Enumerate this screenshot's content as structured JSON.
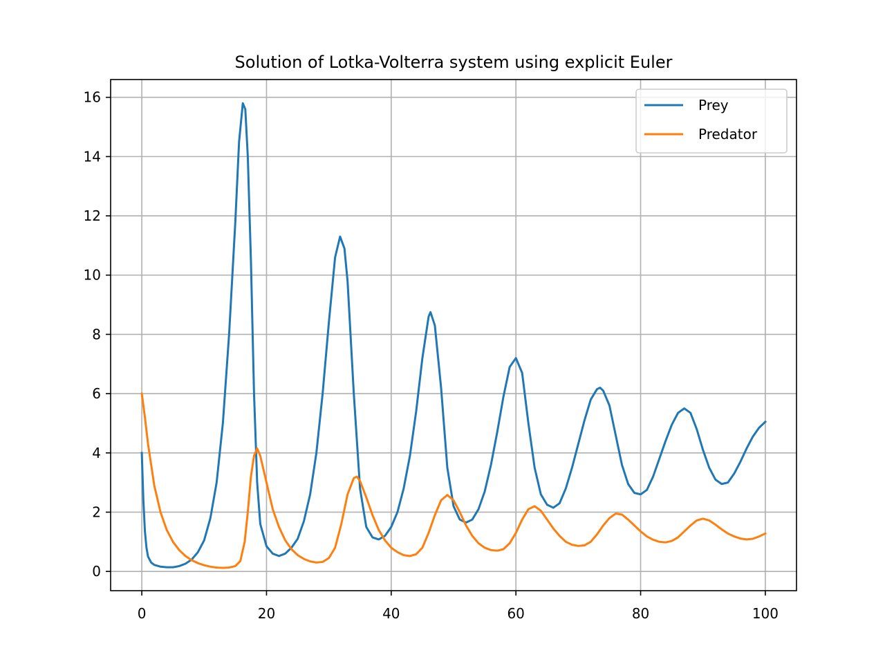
{
  "chart_data": {
    "type": "line",
    "title": "Solution of Lotka-Volterra system using explicit Euler",
    "xlabel": "",
    "ylabel": "",
    "xlim": [
      -5,
      105
    ],
    "ylim": [
      -0.65,
      16.6
    ],
    "xticks": [
      0,
      20,
      40,
      60,
      80,
      100
    ],
    "yticks": [
      0,
      2,
      4,
      6,
      8,
      10,
      12,
      14,
      16
    ],
    "grid": true,
    "legend": "top-right",
    "series": [
      {
        "name": "Prey",
        "color": "#1f77b4",
        "points": [
          [
            0,
            4.0
          ],
          [
            0.25,
            2.4
          ],
          [
            0.5,
            1.35
          ],
          [
            0.75,
            0.8
          ],
          [
            1,
            0.5
          ],
          [
            1.5,
            0.3
          ],
          [
            2,
            0.22
          ],
          [
            3,
            0.16
          ],
          [
            4,
            0.14
          ],
          [
            5,
            0.14
          ],
          [
            6,
            0.18
          ],
          [
            7,
            0.26
          ],
          [
            8,
            0.4
          ],
          [
            9,
            0.65
          ],
          [
            10,
            1.05
          ],
          [
            11,
            1.8
          ],
          [
            12,
            3.0
          ],
          [
            13,
            5.0
          ],
          [
            14,
            8.0
          ],
          [
            15,
            11.8
          ],
          [
            15.6,
            14.5
          ],
          [
            16.2,
            15.8
          ],
          [
            16.6,
            15.6
          ],
          [
            17,
            14.0
          ],
          [
            17.5,
            10.5
          ],
          [
            18,
            6.0
          ],
          [
            18.5,
            3.0
          ],
          [
            19,
            1.6
          ],
          [
            20,
            0.85
          ],
          [
            21,
            0.6
          ],
          [
            22,
            0.52
          ],
          [
            23,
            0.6
          ],
          [
            24,
            0.8
          ],
          [
            25,
            1.1
          ],
          [
            26,
            1.7
          ],
          [
            27,
            2.6
          ],
          [
            28,
            4.0
          ],
          [
            29,
            6.0
          ],
          [
            30,
            8.4
          ],
          [
            31,
            10.6
          ],
          [
            31.8,
            11.3
          ],
          [
            32.5,
            10.9
          ],
          [
            33,
            9.8
          ],
          [
            34,
            6.0
          ],
          [
            35,
            2.8
          ],
          [
            36,
            1.5
          ],
          [
            37,
            1.15
          ],
          [
            38,
            1.08
          ],
          [
            39,
            1.2
          ],
          [
            40,
            1.5
          ],
          [
            41,
            2.0
          ],
          [
            42,
            2.8
          ],
          [
            43,
            3.9
          ],
          [
            44,
            5.4
          ],
          [
            45,
            7.2
          ],
          [
            46,
            8.6
          ],
          [
            46.3,
            8.75
          ],
          [
            47,
            8.3
          ],
          [
            48,
            6.2
          ],
          [
            49,
            3.5
          ],
          [
            50,
            2.2
          ],
          [
            51,
            1.75
          ],
          [
            52,
            1.65
          ],
          [
            53,
            1.75
          ],
          [
            54,
            2.1
          ],
          [
            55,
            2.7
          ],
          [
            56,
            3.6
          ],
          [
            57,
            4.7
          ],
          [
            58,
            5.9
          ],
          [
            59,
            6.9
          ],
          [
            60,
            7.2
          ],
          [
            61,
            6.7
          ],
          [
            62,
            5.0
          ],
          [
            63,
            3.5
          ],
          [
            64,
            2.6
          ],
          [
            65,
            2.25
          ],
          [
            66,
            2.15
          ],
          [
            67,
            2.3
          ],
          [
            68,
            2.8
          ],
          [
            69,
            3.5
          ],
          [
            70,
            4.3
          ],
          [
            71,
            5.1
          ],
          [
            72,
            5.8
          ],
          [
            73,
            6.15
          ],
          [
            73.5,
            6.2
          ],
          [
            74,
            6.1
          ],
          [
            75,
            5.6
          ],
          [
            76,
            4.6
          ],
          [
            77,
            3.6
          ],
          [
            78,
            2.95
          ],
          [
            79,
            2.65
          ],
          [
            80,
            2.6
          ],
          [
            81,
            2.75
          ],
          [
            82,
            3.2
          ],
          [
            83,
            3.8
          ],
          [
            84,
            4.4
          ],
          [
            85,
            4.95
          ],
          [
            86,
            5.35
          ],
          [
            87,
            5.5
          ],
          [
            88,
            5.35
          ],
          [
            89,
            4.8
          ],
          [
            90,
            4.1
          ],
          [
            91,
            3.5
          ],
          [
            92,
            3.1
          ],
          [
            93,
            2.95
          ],
          [
            94,
            3.0
          ],
          [
            95,
            3.3
          ],
          [
            96,
            3.7
          ],
          [
            97,
            4.15
          ],
          [
            98,
            4.55
          ],
          [
            99,
            4.85
          ],
          [
            100,
            5.05
          ]
        ]
      },
      {
        "name": "Predator",
        "color": "#ff7f0e",
        "points": [
          [
            0,
            6.0
          ],
          [
            0.5,
            5.2
          ],
          [
            1,
            4.3
          ],
          [
            1.5,
            3.6
          ],
          [
            2,
            2.9
          ],
          [
            3,
            2.0
          ],
          [
            4,
            1.4
          ],
          [
            5,
            1.0
          ],
          [
            6,
            0.72
          ],
          [
            7,
            0.52
          ],
          [
            8,
            0.38
          ],
          [
            9,
            0.28
          ],
          [
            10,
            0.21
          ],
          [
            11,
            0.16
          ],
          [
            12,
            0.13
          ],
          [
            13,
            0.12
          ],
          [
            14,
            0.13
          ],
          [
            15,
            0.18
          ],
          [
            15.8,
            0.35
          ],
          [
            16.5,
            1.0
          ],
          [
            17,
            2.0
          ],
          [
            17.5,
            3.2
          ],
          [
            18,
            3.9
          ],
          [
            18.5,
            4.15
          ],
          [
            19,
            3.9
          ],
          [
            20,
            3.0
          ],
          [
            21,
            2.1
          ],
          [
            22,
            1.5
          ],
          [
            23,
            1.05
          ],
          [
            24,
            0.75
          ],
          [
            25,
            0.55
          ],
          [
            26,
            0.42
          ],
          [
            27,
            0.34
          ],
          [
            28,
            0.3
          ],
          [
            29,
            0.32
          ],
          [
            30,
            0.45
          ],
          [
            31,
            0.8
          ],
          [
            32,
            1.6
          ],
          [
            33,
            2.6
          ],
          [
            34,
            3.15
          ],
          [
            34.5,
            3.2
          ],
          [
            35,
            3.05
          ],
          [
            36,
            2.5
          ],
          [
            37,
            1.9
          ],
          [
            38,
            1.4
          ],
          [
            39,
            1.05
          ],
          [
            40,
            0.8
          ],
          [
            41,
            0.65
          ],
          [
            42,
            0.55
          ],
          [
            43,
            0.52
          ],
          [
            44,
            0.58
          ],
          [
            45,
            0.8
          ],
          [
            46,
            1.3
          ],
          [
            47,
            1.9
          ],
          [
            48,
            2.4
          ],
          [
            49,
            2.58
          ],
          [
            50,
            2.4
          ],
          [
            51,
            2.0
          ],
          [
            52,
            1.55
          ],
          [
            53,
            1.2
          ],
          [
            54,
            0.95
          ],
          [
            55,
            0.8
          ],
          [
            56,
            0.72
          ],
          [
            57,
            0.7
          ],
          [
            58,
            0.75
          ],
          [
            59,
            0.95
          ],
          [
            60,
            1.3
          ],
          [
            61,
            1.75
          ],
          [
            62,
            2.1
          ],
          [
            63,
            2.2
          ],
          [
            64,
            2.05
          ],
          [
            65,
            1.75
          ],
          [
            66,
            1.45
          ],
          [
            67,
            1.2
          ],
          [
            68,
            1.0
          ],
          [
            69,
            0.9
          ],
          [
            70,
            0.86
          ],
          [
            71,
            0.88
          ],
          [
            72,
            1.0
          ],
          [
            73,
            1.25
          ],
          [
            74,
            1.55
          ],
          [
            75,
            1.8
          ],
          [
            76,
            1.95
          ],
          [
            77,
            1.92
          ],
          [
            78,
            1.75
          ],
          [
            79,
            1.55
          ],
          [
            80,
            1.35
          ],
          [
            81,
            1.18
          ],
          [
            82,
            1.07
          ],
          [
            83,
            1.0
          ],
          [
            84,
            0.98
          ],
          [
            85,
            1.03
          ],
          [
            86,
            1.15
          ],
          [
            87,
            1.35
          ],
          [
            88,
            1.55
          ],
          [
            89,
            1.72
          ],
          [
            90,
            1.78
          ],
          [
            91,
            1.72
          ],
          [
            92,
            1.58
          ],
          [
            93,
            1.42
          ],
          [
            94,
            1.28
          ],
          [
            95,
            1.18
          ],
          [
            96,
            1.11
          ],
          [
            97,
            1.08
          ],
          [
            98,
            1.1
          ],
          [
            99,
            1.18
          ],
          [
            100,
            1.28
          ]
        ]
      }
    ]
  }
}
